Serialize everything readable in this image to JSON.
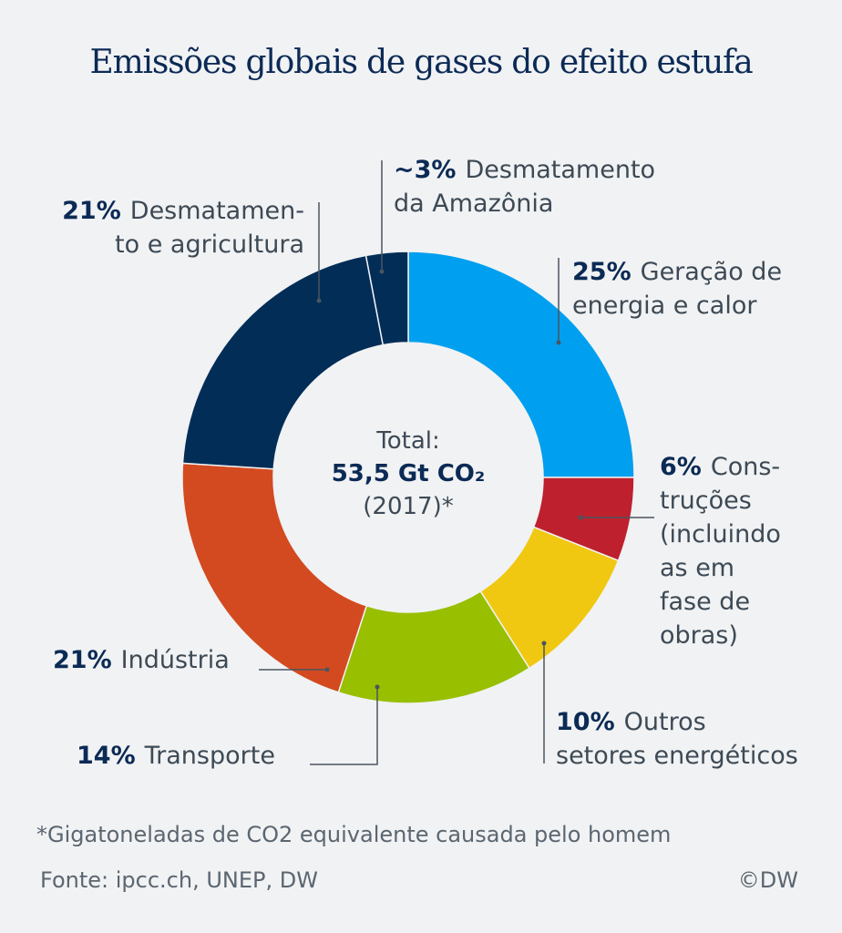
{
  "chart_data": {
    "type": "pie",
    "variant": "donut",
    "title": "Emissões globais de gases do efeito estufa",
    "center_label": {
      "line1": "Total:",
      "line2": "53,5 Gt CO₂",
      "line3": "(2017)*"
    },
    "slices": [
      {
        "pct_label": "25%",
        "value": 25,
        "label_lines": [
          "Geração de",
          "energia e calor"
        ],
        "color": "#009fef"
      },
      {
        "pct_label": "6%",
        "value": 6,
        "label_lines": [
          "Cons-",
          "truções",
          "(incluindo",
          "as em",
          "fase de",
          "obras)"
        ],
        "color": "#be202e"
      },
      {
        "pct_label": "10%",
        "value": 10,
        "label_lines": [
          "Outros",
          "setores energéticos"
        ],
        "color": "#f0c812"
      },
      {
        "pct_label": "14%",
        "value": 14,
        "label_lines": [
          "Transporte"
        ],
        "color": "#98bf00"
      },
      {
        "pct_label": "21%",
        "value": 21,
        "label_lines": [
          "Indústria"
        ],
        "color": "#d34a20"
      },
      {
        "pct_label": "21%",
        "value": 21,
        "label_lines": [
          "Desmatamen-",
          "to e agricultura"
        ],
        "color": "#022d57"
      },
      {
        "pct_label": "~3%",
        "value": 3,
        "label_lines": [
          "Desmatamento",
          "da Amazônia"
        ],
        "color": "#022d57"
      }
    ]
  },
  "footer": {
    "footnote": "*Gigatoneladas de CO2 equivalente causada pelo homem",
    "source": "Fonte: ipcc.ch, UNEP, DW",
    "credit": "©DW"
  }
}
